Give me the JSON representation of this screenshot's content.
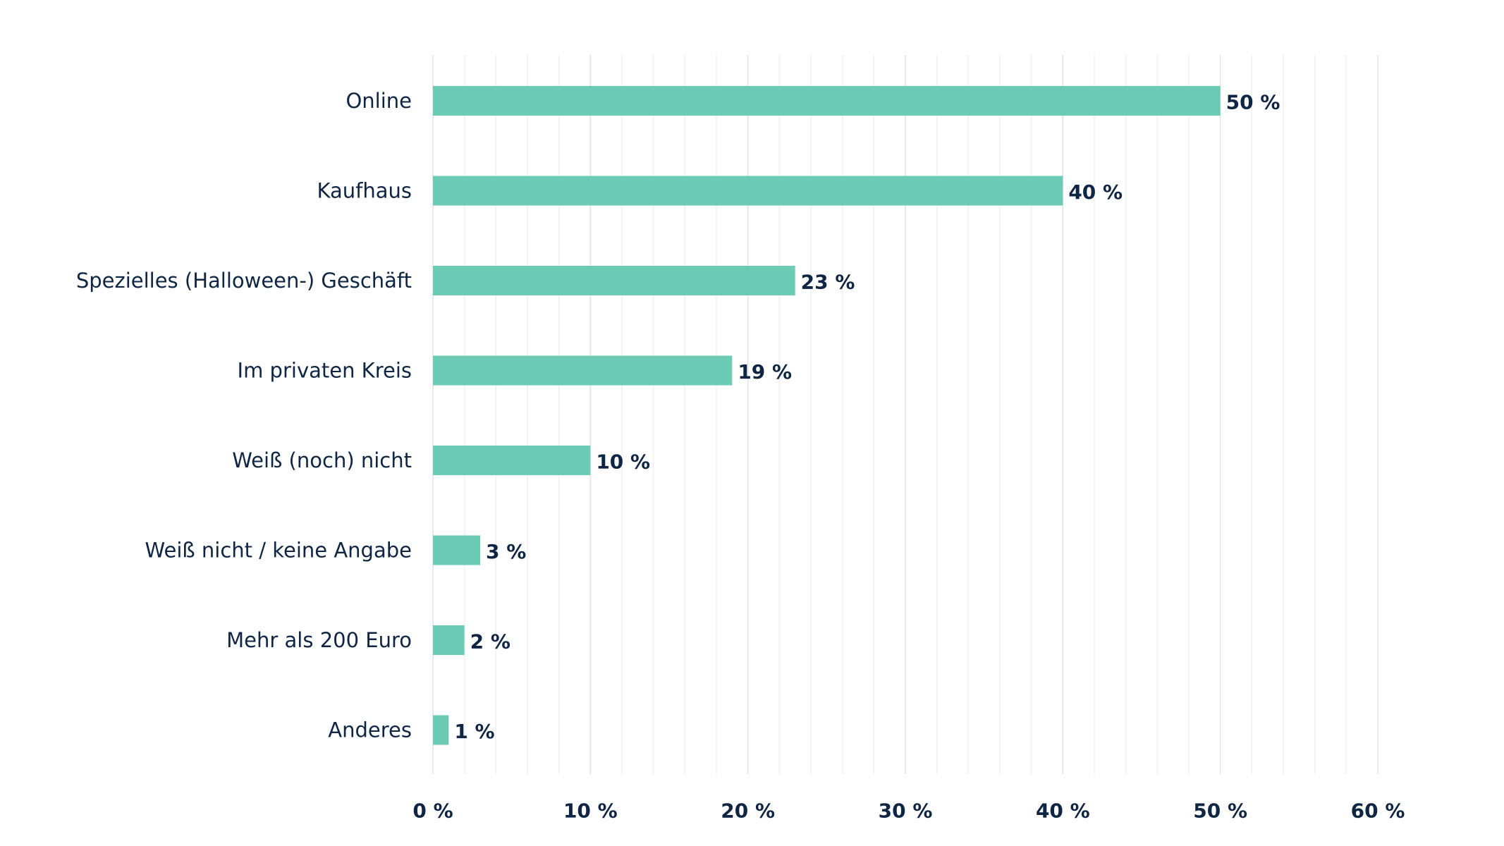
{
  "chart_data": {
    "type": "bar",
    "orientation": "horizontal",
    "categories": [
      "Online",
      "Kaufhaus",
      "Spezielles (Halloween-) Geschäft",
      "Im privaten Kreis",
      "Weiß (noch) nicht",
      "Weiß nicht / keine Angabe",
      "Mehr als 200 Euro",
      "Anderes"
    ],
    "values": [
      50,
      40,
      23,
      19,
      10,
      3,
      2,
      1
    ],
    "value_labels": [
      "50 %",
      "40 %",
      "23 %",
      "19 %",
      "10 %",
      "3 %",
      "2 %",
      "1 %"
    ],
    "x_ticks": [
      0,
      10,
      20,
      30,
      40,
      50,
      60
    ],
    "x_tick_labels": [
      "0 %",
      "10 %",
      "20 %",
      "30 %",
      "40 %",
      "50 %",
      "60 %"
    ],
    "xlim": [
      0,
      60
    ],
    "minor_grid_step": 2,
    "grid": true,
    "title": "",
    "xlabel": "",
    "ylabel": "",
    "colors": {
      "bar": "#6ccbb4",
      "text": "#0f2544"
    }
  }
}
